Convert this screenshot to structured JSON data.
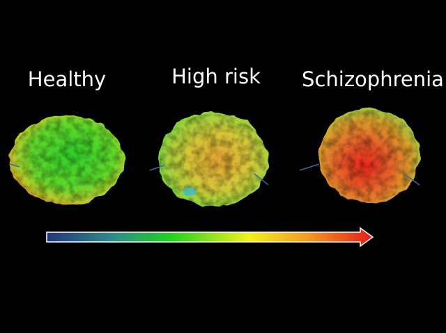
{
  "labels": [
    "Healthy",
    "High risk",
    "Schizophrenia"
  ]
}
